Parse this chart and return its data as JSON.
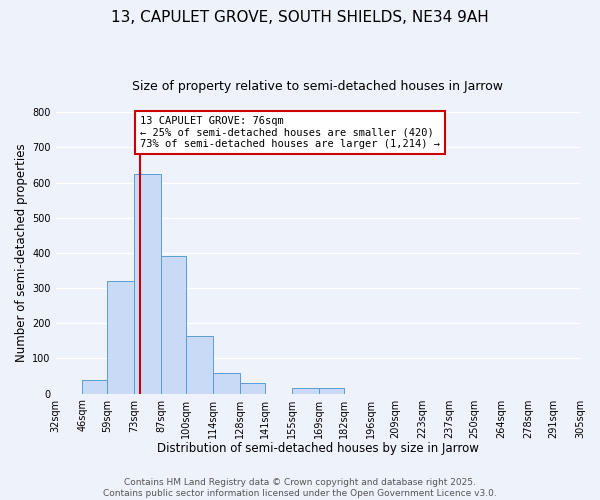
{
  "title": "13, CAPULET GROVE, SOUTH SHIELDS, NE34 9AH",
  "subtitle": "Size of property relative to semi-detached houses in Jarrow",
  "xlabel": "Distribution of semi-detached houses by size in Jarrow",
  "ylabel": "Number of semi-detached properties",
  "bin_edges": [
    32,
    46,
    59,
    73,
    87,
    100,
    114,
    128,
    141,
    155,
    169,
    182,
    196,
    209,
    223,
    237,
    250,
    264,
    278,
    291,
    305
  ],
  "bar_heights": [
    0,
    40,
    320,
    625,
    390,
    165,
    58,
    30,
    0,
    15,
    15,
    0,
    0,
    0,
    0,
    0,
    0,
    0,
    0,
    0
  ],
  "bar_color": "#c8daf5",
  "bar_edge_color": "#5b9bd5",
  "property_size": 76,
  "vline_color": "#cc0000",
  "annotation_title": "13 CAPULET GROVE: 76sqm",
  "annotation_line1": "← 25% of semi-detached houses are smaller (420)",
  "annotation_line2": "73% of semi-detached houses are larger (1,214) →",
  "annotation_box_color": "#ffffff",
  "annotation_box_edge_color": "#cc0000",
  "ylim": [
    0,
    800
  ],
  "yticks": [
    0,
    100,
    200,
    300,
    400,
    500,
    600,
    700,
    800
  ],
  "x_tick_labels": [
    "32sqm",
    "46sqm",
    "59sqm",
    "73sqm",
    "87sqm",
    "100sqm",
    "114sqm",
    "128sqm",
    "141sqm",
    "155sqm",
    "169sqm",
    "182sqm",
    "196sqm",
    "209sqm",
    "223sqm",
    "237sqm",
    "250sqm",
    "264sqm",
    "278sqm",
    "291sqm",
    "305sqm"
  ],
  "footer_line1": "Contains HM Land Registry data © Crown copyright and database right 2025.",
  "footer_line2": "Contains public sector information licensed under the Open Government Licence v3.0.",
  "background_color": "#eef2fb",
  "grid_color": "#ffffff",
  "title_fontsize": 11,
  "subtitle_fontsize": 9,
  "axis_label_fontsize": 8.5,
  "tick_fontsize": 7,
  "annotation_fontsize": 7.5,
  "footer_fontsize": 6.5
}
